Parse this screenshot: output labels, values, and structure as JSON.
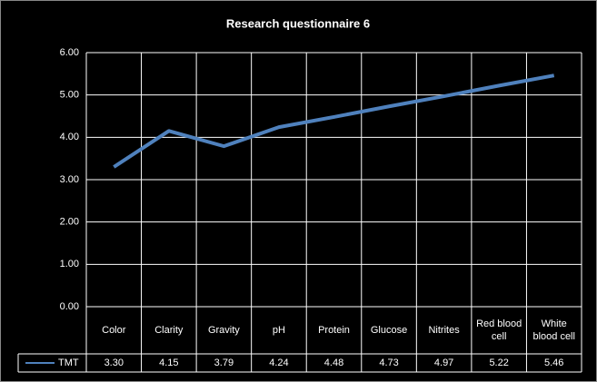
{
  "chart_data": {
    "type": "line",
    "title": "Research questionnaire 6",
    "categories": [
      "Color",
      "Clarity",
      "Gravity",
      "pH",
      "Protein",
      "Glucose",
      "Nitrites",
      "Red blood cell",
      "White blood cell"
    ],
    "series": [
      {
        "name": "TMT",
        "color": "#4f81bd",
        "values": [
          3.3,
          4.15,
          3.79,
          4.24,
          4.48,
          4.73,
          4.97,
          5.22,
          5.46
        ],
        "value_labels": [
          "3.30",
          "4.15",
          "3.79",
          "4.24",
          "4.48",
          "4.73",
          "4.97",
          "5.22",
          "5.46"
        ]
      }
    ],
    "ylim": [
      0,
      6
    ],
    "yticks": [
      {
        "value": 0,
        "label": "0.00"
      },
      {
        "value": 1,
        "label": "1.00"
      },
      {
        "value": 2,
        "label": "2.00"
      },
      {
        "value": 3,
        "label": "3.00"
      },
      {
        "value": 4,
        "label": "4.00"
      },
      {
        "value": 5,
        "label": "5.00"
      },
      {
        "value": 6,
        "label": "6.00"
      }
    ],
    "grid": true
  }
}
